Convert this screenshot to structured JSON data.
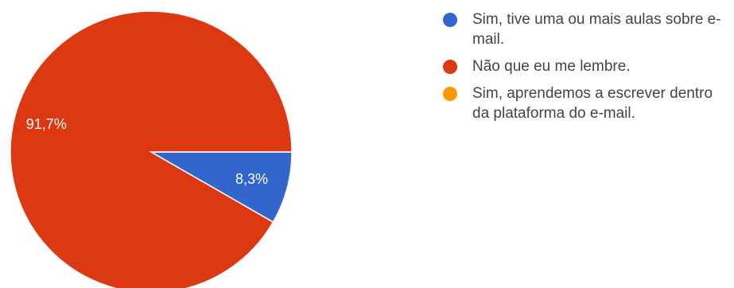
{
  "chart_data": {
    "type": "pie",
    "slices": [
      {
        "label": "Sim, tive uma ou mais aulas sobre e-mail.",
        "value": 8.3,
        "display": "8,3%",
        "color": "#3366cc"
      },
      {
        "label": "Não que eu me lembre.",
        "value": 91.7,
        "display": "91,7%",
        "color": "#dc3912"
      },
      {
        "label": "Sim, aprendemos a escrever dentro da plataforma do e-mail.",
        "value": 0,
        "display": "",
        "color": "#ff9900"
      }
    ],
    "legend_position": "right"
  }
}
